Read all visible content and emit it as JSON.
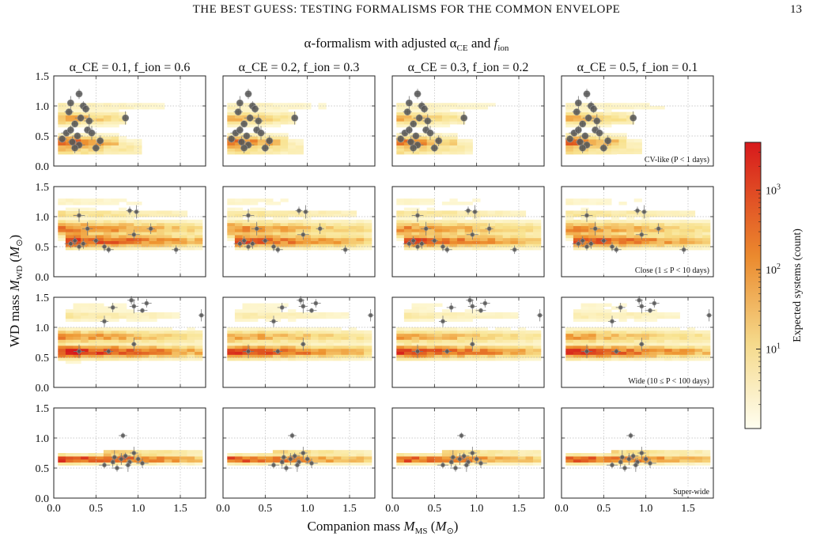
{
  "running_head": "THE BEST GUESS: TESTING FORMALISMS FOR THE COMMON ENVELOPE",
  "page_number": "13",
  "figure": {
    "suptitle": "α-formalism with adjusted α_CE and f_ion",
    "columns": [
      "α_CE = 0.1, f_ion = 0.6",
      "α_CE = 0.2, f_ion = 0.3",
      "α_CE = 0.3, f_ion = 0.2",
      "α_CE = 0.5, f_ion = 0.1"
    ],
    "row_labels": [
      "CV-like (P < 1 days)",
      "Close (1 ≤ P < 10 days)",
      "Wide (10 ≤ P < 100 days)",
      "Super-wide"
    ],
    "xlabel": "Companion mass M_MS (M_⊙)",
    "ylabel": "WD mass M_WD (M_⊙)",
    "colorbar_label": "Expected systems (count)",
    "colorbar_ticks": [
      "10^1",
      "10^2",
      "10^3"
    ],
    "colors": {
      "low": "#fffde6",
      "mid": "#e8711f",
      "high": "#d7191c",
      "points": "#555555"
    }
  },
  "chart_data": {
    "type": "heatmap",
    "layout": "4x4 grid of panels, shared axes",
    "x_range": [
      0.0,
      1.8
    ],
    "y_range": [
      0.0,
      1.5
    ],
    "x_ticks": [
      "0.0",
      "0.5",
      "1.0",
      "1.5"
    ],
    "y_ticks": [
      "0.0",
      "0.5",
      "1.0",
      "1.5"
    ],
    "colorbar_scale": "log",
    "colorbar_range": [
      1,
      4000
    ],
    "grid": true,
    "observed_points": [
      {
        "category": 0,
        "points": [
          [
            0.1,
            0.45
          ],
          [
            0.15,
            0.55
          ],
          [
            0.2,
            0.6
          ],
          [
            0.22,
            0.4
          ],
          [
            0.25,
            0.7
          ],
          [
            0.28,
            0.5
          ],
          [
            0.3,
            0.35
          ],
          [
            0.32,
            0.8
          ],
          [
            0.35,
            1.0
          ],
          [
            0.18,
            0.9
          ],
          [
            0.4,
            0.6
          ],
          [
            0.45,
            0.55
          ],
          [
            0.3,
            1.2
          ],
          [
            0.38,
            0.95
          ],
          [
            0.55,
            0.42
          ],
          [
            0.85,
            0.8
          ],
          [
            0.5,
            0.3
          ],
          [
            0.25,
            0.3
          ],
          [
            0.42,
            0.75
          ],
          [
            0.2,
            1.05
          ]
        ]
      },
      {
        "category": 1,
        "points": [
          [
            0.2,
            0.55
          ],
          [
            0.25,
            0.6
          ],
          [
            0.3,
            0.5
          ],
          [
            0.35,
            0.55
          ],
          [
            0.4,
            0.8
          ],
          [
            0.5,
            0.6
          ],
          [
            0.6,
            0.5
          ],
          [
            0.95,
            0.7
          ],
          [
            1.15,
            0.8
          ],
          [
            1.45,
            0.45
          ],
          [
            0.3,
            1.02
          ],
          [
            0.9,
            1.1
          ],
          [
            0.98,
            1.08
          ],
          [
            0.65,
            0.45
          ]
        ]
      },
      {
        "category": 2,
        "points": [
          [
            0.3,
            0.6
          ],
          [
            0.65,
            0.6
          ],
          [
            0.95,
            0.72
          ],
          [
            0.7,
            1.33
          ],
          [
            0.92,
            1.45
          ],
          [
            0.95,
            1.35
          ],
          [
            1.1,
            1.4
          ],
          [
            1.05,
            1.28
          ],
          [
            0.6,
            1.1
          ],
          [
            1.75,
            1.2
          ]
        ]
      },
      {
        "category": 3,
        "points": [
          [
            0.6,
            0.55
          ],
          [
            0.7,
            0.6
          ],
          [
            0.8,
            0.65
          ],
          [
            0.85,
            0.7
          ],
          [
            0.9,
            0.6
          ],
          [
            0.95,
            0.75
          ],
          [
            1.0,
            0.65
          ],
          [
            0.75,
            0.5
          ],
          [
            1.05,
            0.58
          ],
          [
            0.82,
            1.04
          ],
          [
            0.88,
            0.55
          ],
          [
            0.72,
            0.68
          ]
        ]
      }
    ]
  }
}
